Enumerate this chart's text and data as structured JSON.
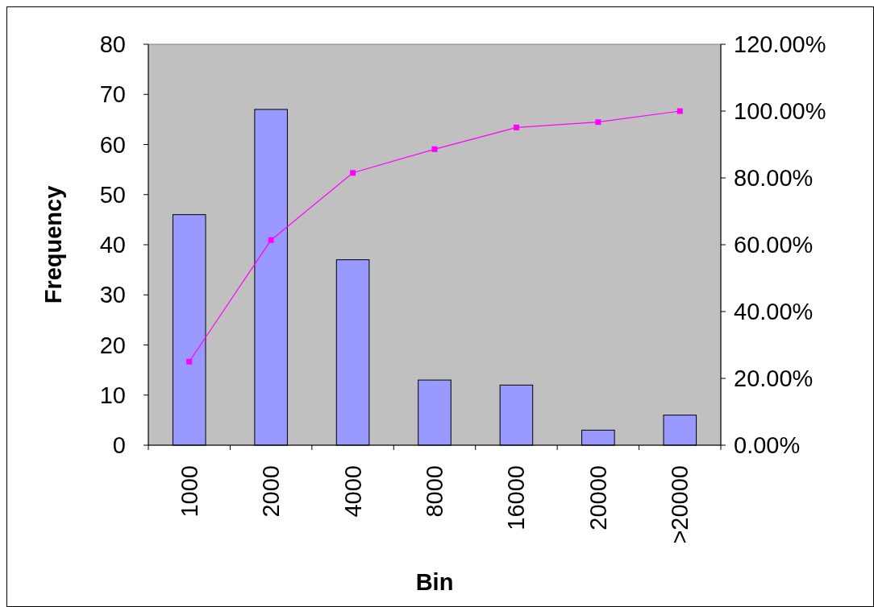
{
  "chart_data": {
    "type": "bar",
    "xlabel": "Bin",
    "ylabel": "Frequency",
    "categories": [
      "1000",
      "2000",
      "4000",
      "8000",
      "16000",
      "20000",
      ">20000"
    ],
    "series": [
      {
        "color": "#9999ff",
        "values": [
          46,
          67,
          37,
          13,
          12,
          3,
          6
        ]
      },
      {
        "type": "line",
        "axis": "y2",
        "color": "#ff00ff",
        "marker": "square",
        "values": [
          25.0,
          61.4,
          81.5,
          88.6,
          95.1,
          96.7,
          100
        ]
      }
    ],
    "ylim": [
      0,
      80
    ],
    "yticks": [
      0,
      10,
      20,
      30,
      40,
      50,
      60,
      70,
      80
    ],
    "y2lim": [
      0,
      120
    ],
    "y2ticks": [
      {
        "value": 0,
        "label": "0.00%"
      },
      {
        "value": 20,
        "label": "20.00%"
      },
      {
        "value": 40,
        "label": "40.00%"
      },
      {
        "value": 60,
        "label": "60.00%"
      },
      {
        "value": 80,
        "label": "80.00%"
      },
      {
        "value": 100,
        "label": "100.00%"
      },
      {
        "value": 120,
        "label": "120.00%"
      }
    ],
    "grid": false
  }
}
